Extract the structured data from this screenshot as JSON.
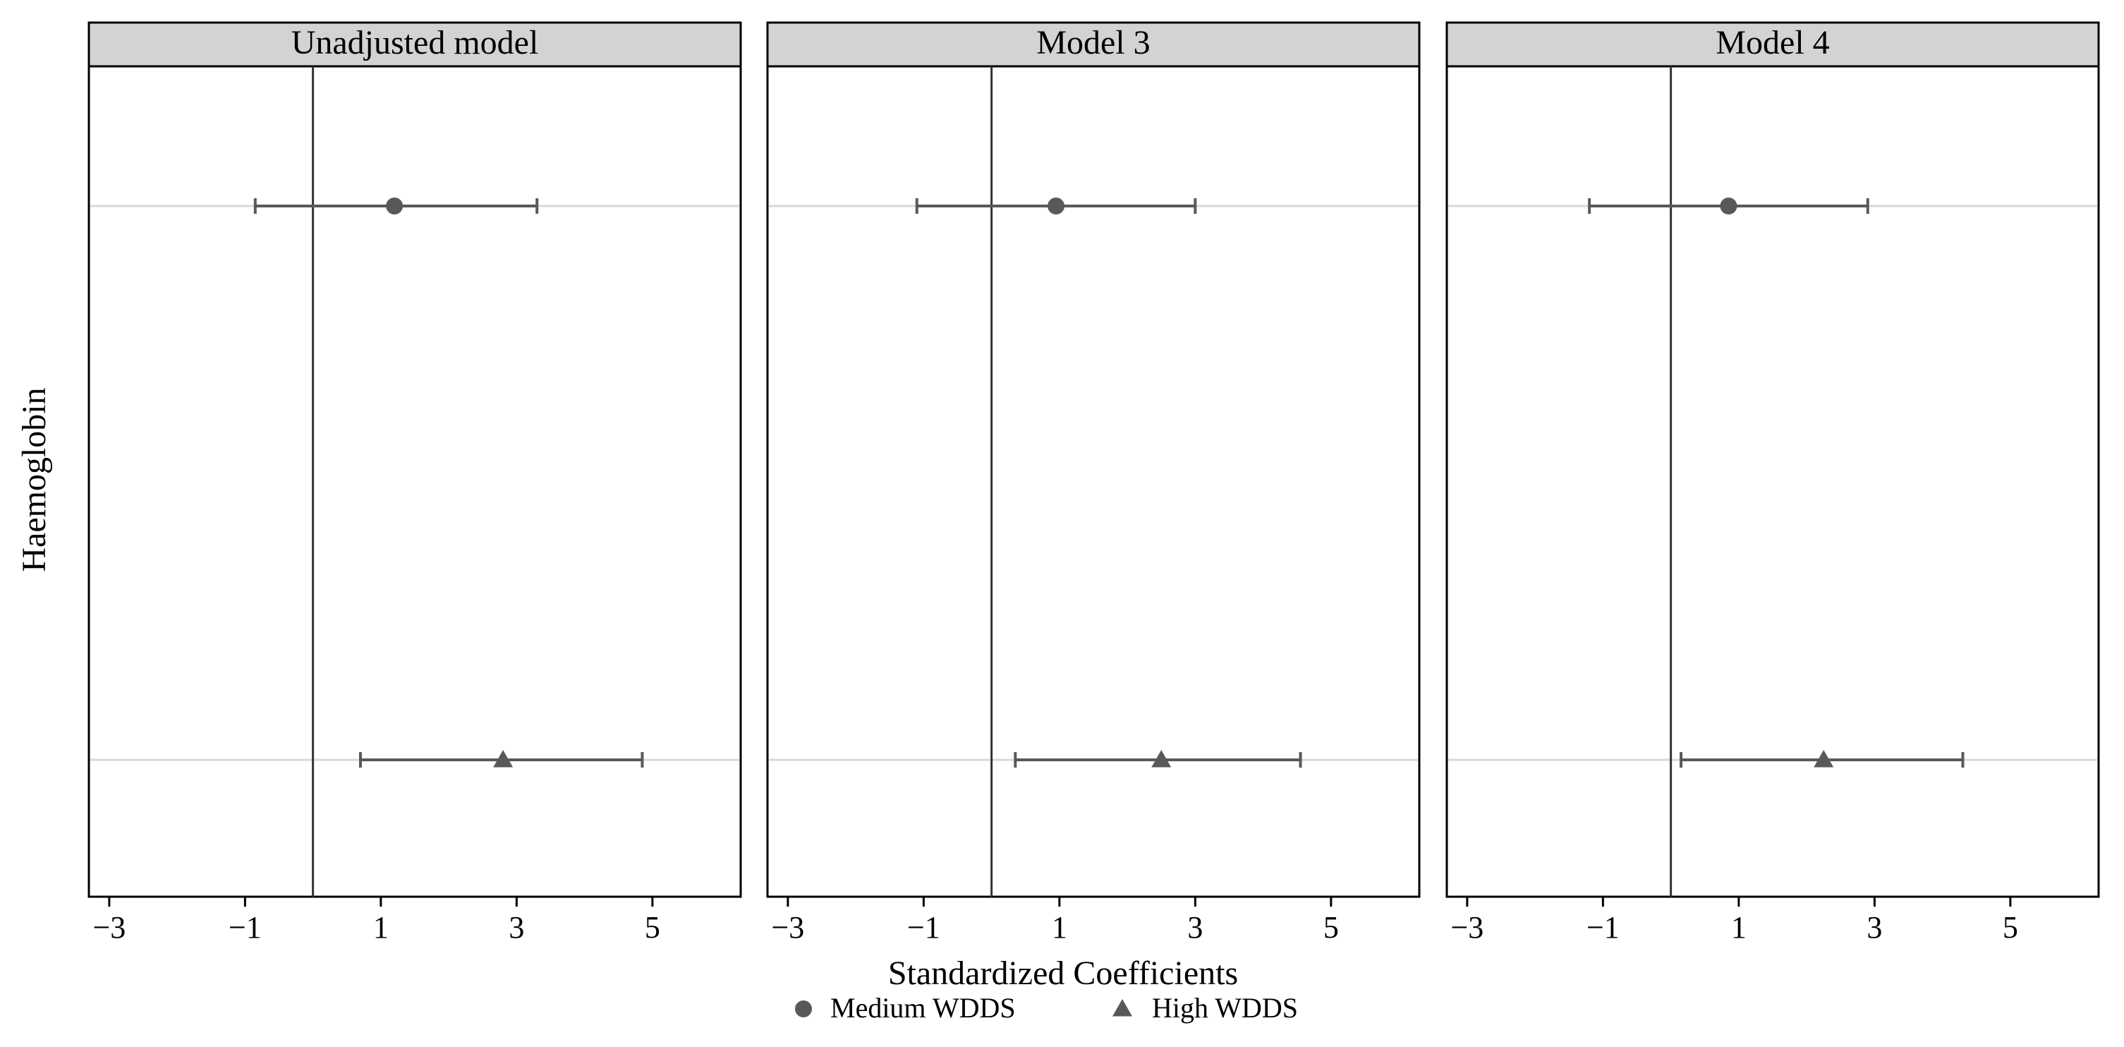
{
  "chart_data": {
    "type": "scatter",
    "subtype": "coefficient-plot-faceted",
    "ylabel": "Haemoglobin",
    "xlabel": "Standardized Coefficients",
    "xlim": [
      -3.3,
      6.3
    ],
    "xticks": [
      -3,
      -1,
      1,
      3,
      5
    ],
    "xtick_labels": [
      "−3",
      "−1",
      "1",
      "3",
      "5"
    ],
    "reference_line_x": 0,
    "grid": "horizontal lines at each coefficient row",
    "legend_position": "bottom",
    "series": [
      {
        "name": "Medium WDDS",
        "marker": "circle",
        "color": "#595959"
      },
      {
        "name": "High WDDS",
        "marker": "triangle",
        "color": "#595959"
      }
    ],
    "panels": [
      {
        "title": "Unadjusted model",
        "points": [
          {
            "series": "Medium WDDS",
            "estimate": 1.2,
            "lower": -0.85,
            "upper": 3.3
          },
          {
            "series": "High WDDS",
            "estimate": 2.8,
            "lower": 0.7,
            "upper": 4.85
          }
        ]
      },
      {
        "title": "Model 3",
        "points": [
          {
            "series": "Medium WDDS",
            "estimate": 0.95,
            "lower": -1.1,
            "upper": 3.0
          },
          {
            "series": "High WDDS",
            "estimate": 2.5,
            "lower": 0.35,
            "upper": 4.55
          }
        ]
      },
      {
        "title": "Model 4",
        "points": [
          {
            "series": "Medium WDDS",
            "estimate": 0.85,
            "lower": -1.2,
            "upper": 2.9
          },
          {
            "series": "High WDDS",
            "estimate": 2.25,
            "lower": 0.15,
            "upper": 4.3
          }
        ]
      }
    ]
  },
  "colors": {
    "strip_fill": "#d3d3d3",
    "marker": "#595959",
    "grid": "#d9d9d9",
    "frame": "#000000"
  }
}
